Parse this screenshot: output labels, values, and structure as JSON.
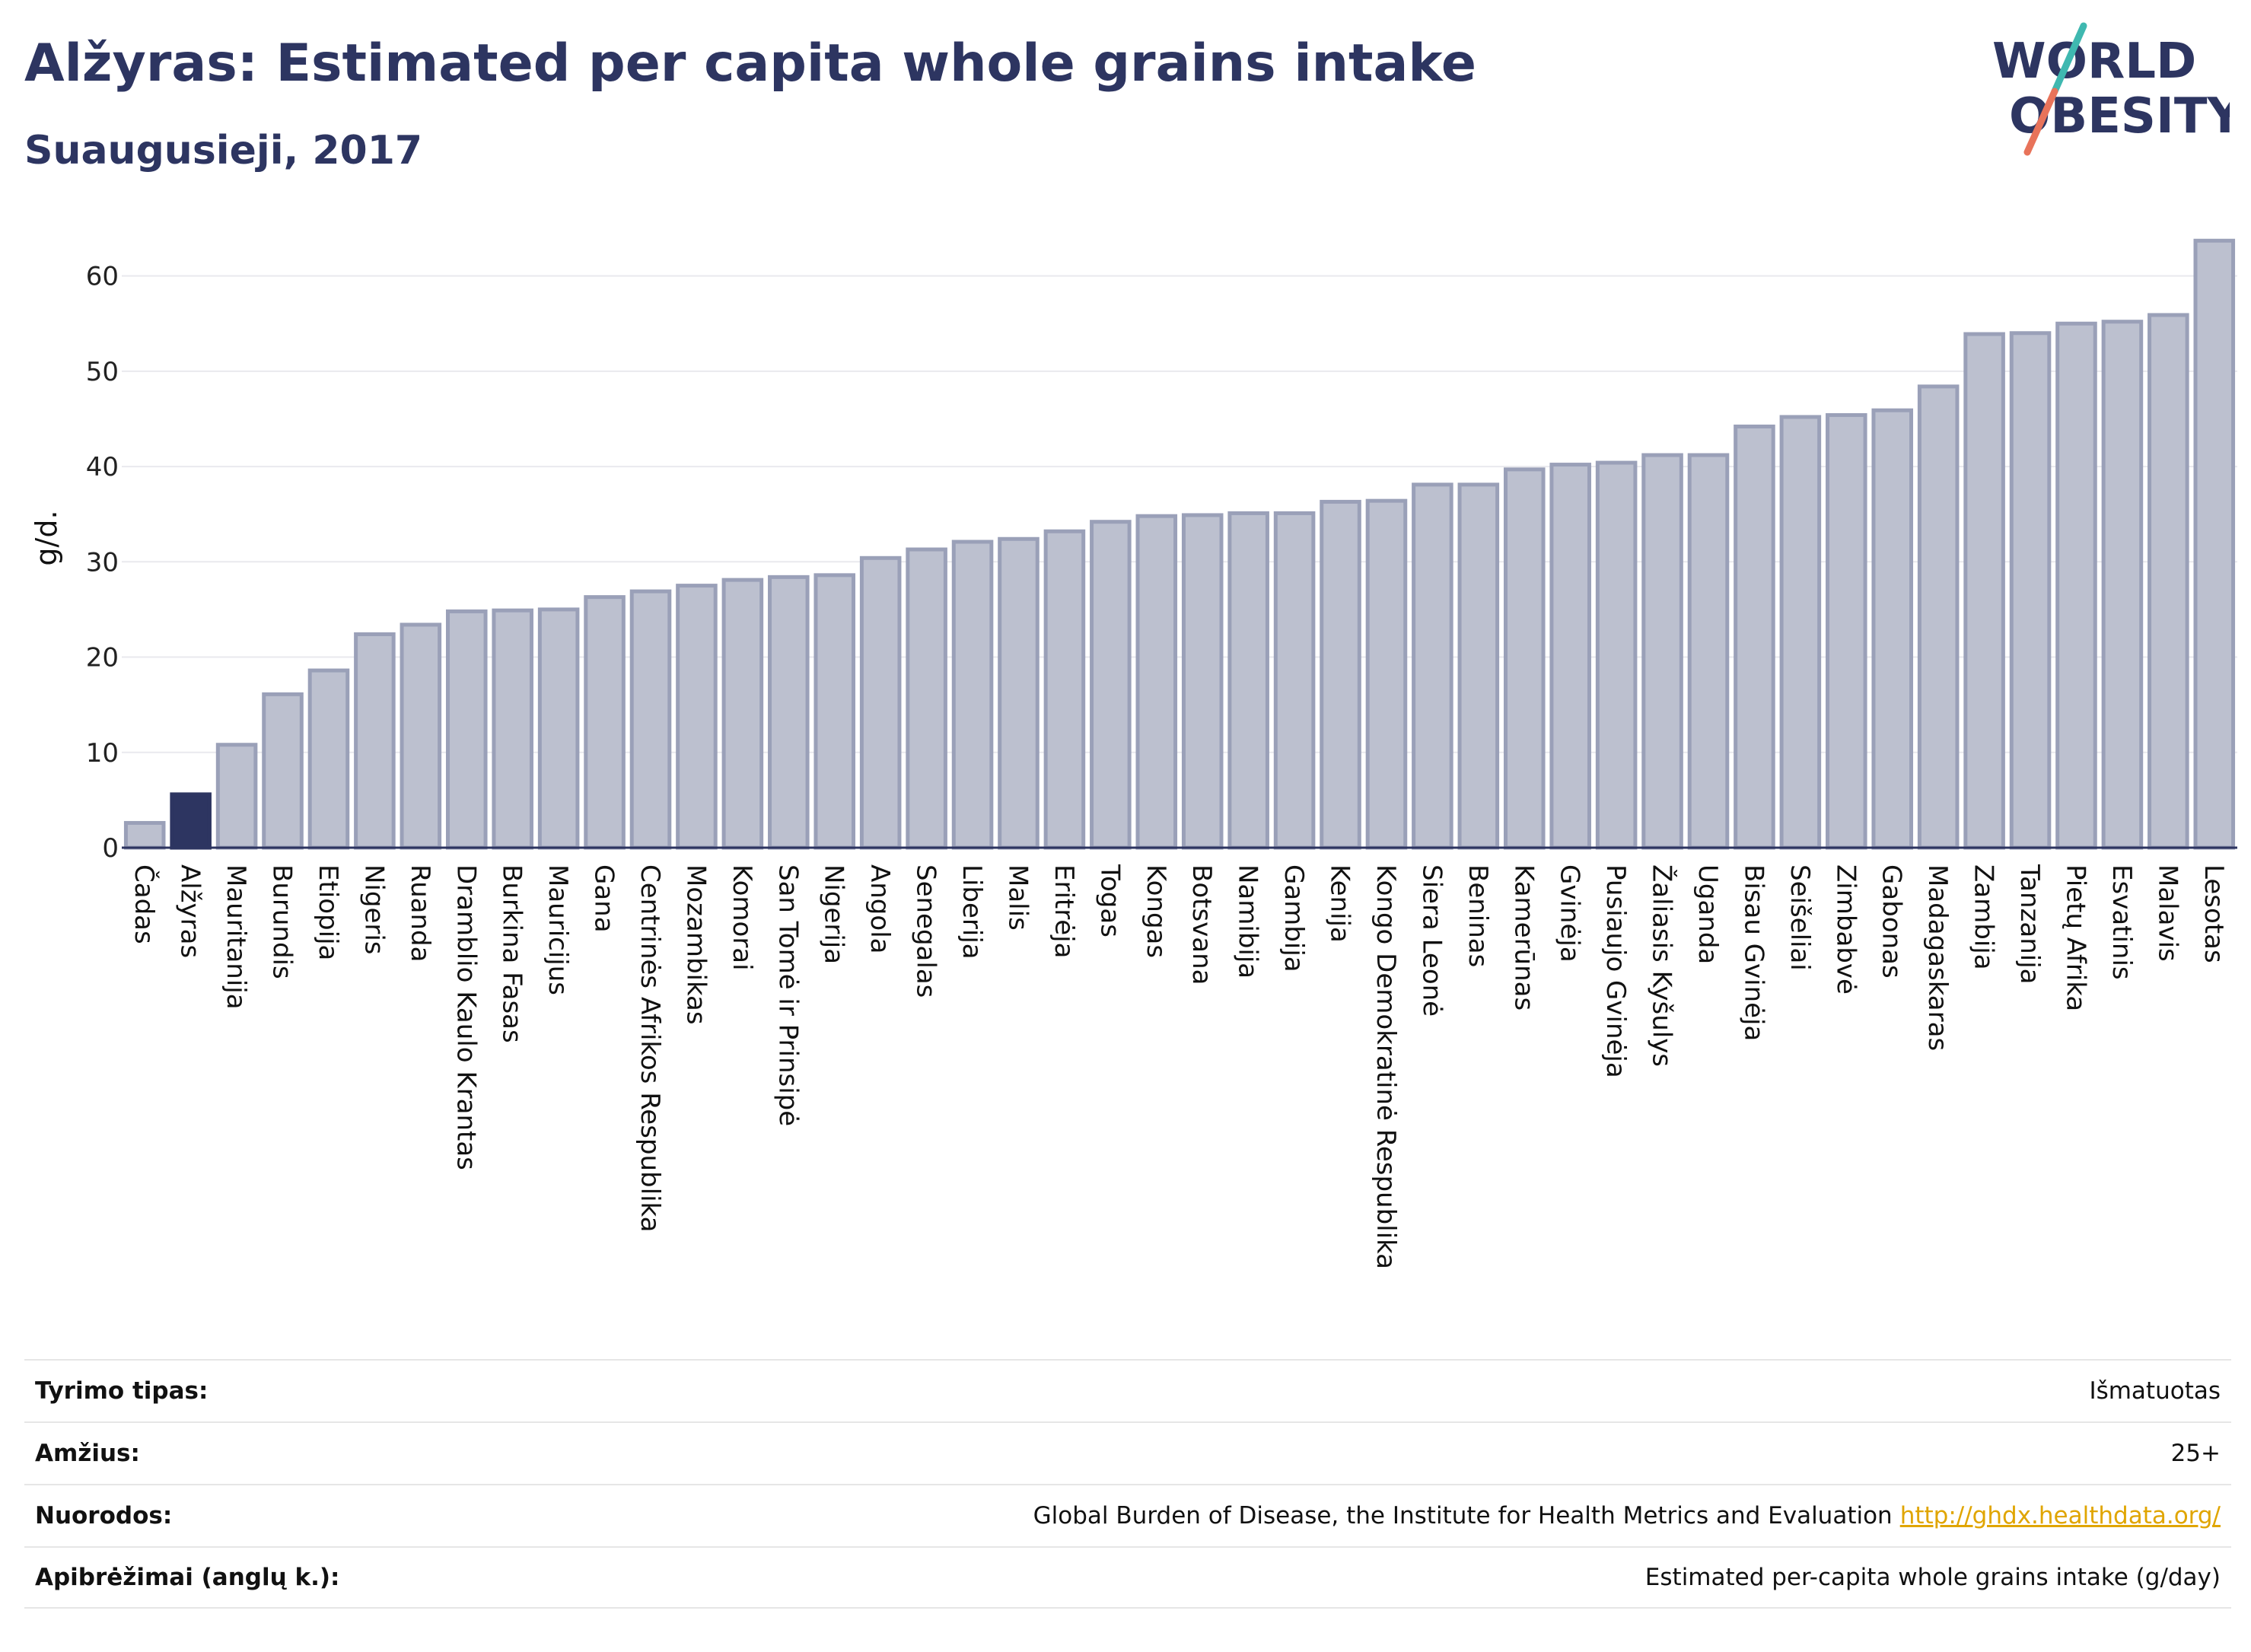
{
  "header": {
    "title": "Alžyras: Estimated per capita whole grains intake",
    "subtitle": "Suaugusieji, 2017"
  },
  "logo": {
    "line1": "WORLD",
    "line2": "OBESITY",
    "icon": "world-obesity-logo"
  },
  "colors": {
    "brand": "#2d3561",
    "bar": "#bcc0cf",
    "bar_outline": "#9aa0b8",
    "highlight": "#2d3561",
    "logo_slash_teal": "#3fb8b0",
    "logo_slash_coral": "#e8735a",
    "link": "#e0a500"
  },
  "chart_data": {
    "type": "bar",
    "ylabel": "g/d.",
    "xlabel": "",
    "ylim": [
      0,
      65
    ],
    "yticks": [
      0,
      10,
      20,
      30,
      40,
      50,
      60
    ],
    "grid": true,
    "highlight": "Alžyras",
    "categories": [
      "Čadas",
      "Alžyras",
      "Mauritanija",
      "Burundis",
      "Etiopija",
      "Nigeris",
      "Ruanda",
      "Dramblio Kaulo Krantas",
      "Burkina Fasas",
      "Mauricijus",
      "Gana",
      "Centrinės Afrikos Respublika",
      "Mozambikas",
      "Komorai",
      "San Tomė ir Prinsipė",
      "Nigerija",
      "Angola",
      "Senegalas",
      "Liberija",
      "Malis",
      "Eritrėja",
      "Togas",
      "Kongas",
      "Botsvana",
      "Namibija",
      "Gambija",
      "Kenija",
      "Kongo Demokratinė Respublika",
      "Siera Leonė",
      "Beninas",
      "Kamerūnas",
      "Gvinėja",
      "Pusiaujo Gvinėja",
      "Žaliasis Kyšulys",
      "Uganda",
      "Bisau Gvinėja",
      "Seišeliai",
      "Zimbabvė",
      "Gabonas",
      "Madagaskaras",
      "Zambija",
      "Tanzanija",
      "Pietų Afrika",
      "Esvatinis",
      "Malavis",
      "Lesotas"
    ],
    "values": [
      2.6,
      5.6,
      10.8,
      16.1,
      18.6,
      22.4,
      23.4,
      24.8,
      24.9,
      25.0,
      26.3,
      26.9,
      27.5,
      28.1,
      28.4,
      28.6,
      30.4,
      31.3,
      32.1,
      32.4,
      33.2,
      34.2,
      34.8,
      34.9,
      35.1,
      35.1,
      36.3,
      36.4,
      38.1,
      38.1,
      39.7,
      40.2,
      40.4,
      41.2,
      41.2,
      44.2,
      45.2,
      45.4,
      45.9,
      48.4,
      53.9,
      54.0,
      55.0,
      55.2,
      55.9,
      63.7
    ]
  },
  "info": {
    "rows": [
      {
        "label": "Tyrimo tipas:",
        "value": "Išmatuotas"
      },
      {
        "label": "Amžius:",
        "value": "25+"
      },
      {
        "label": "Nuorodos:",
        "value": "Global Burden of Disease, the Institute for Health Metrics and Evaluation",
        "link": "http://ghdx.healthdata.org/"
      },
      {
        "label": "Apibrėžimai (anglų k.):",
        "value": "Estimated per-capita whole grains intake (g/day)"
      }
    ]
  }
}
